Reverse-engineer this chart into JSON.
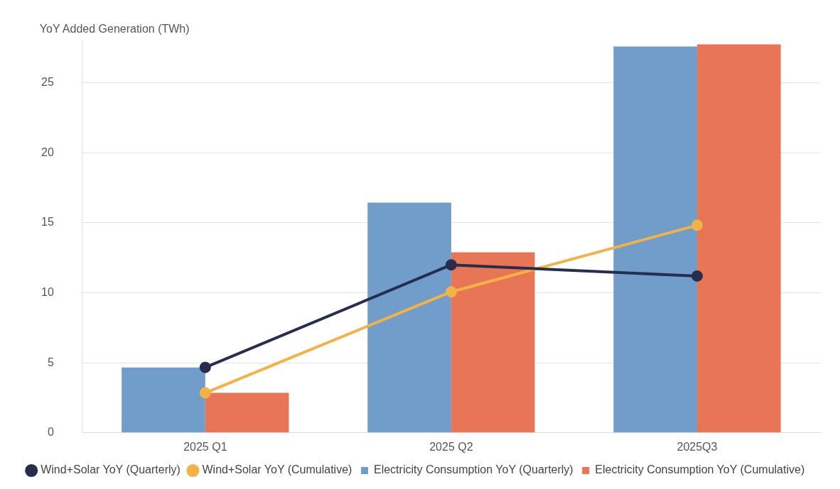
{
  "chart_data": {
    "type": "bar",
    "ylabel": "YoY Added Generation (TWh)",
    "categories": [
      "2025 Q1",
      "2025 Q2",
      "2025Q3"
    ],
    "series": [
      {
        "name": "Wind+Solar YoY (Quarterly)",
        "type": "line",
        "color": "#262d4d",
        "values": [
          4.67,
          12.0,
          11.2
        ]
      },
      {
        "name": "Electricity Consumption YoY (Quarterly)",
        "color": "#709dca",
        "values": [
          4.67,
          16.45,
          27.6
        ]
      },
      {
        "name": "Wind+Solar YoY (Cumulative)",
        "type": "line",
        "color": "#f2b245",
        "values": [
          2.85,
          10.07,
          14.83
        ]
      },
      {
        "name": "Electricity Consumption YoY (Cumulative)",
        "color": "#e87656",
        "values": [
          2.85,
          12.9,
          27.75
        ]
      }
    ],
    "ylim": [
      0,
      28
    ],
    "yticks": [
      0,
      5,
      10,
      15,
      20,
      25
    ],
    "grid": "y",
    "legend": "bottom",
    "marker": "circle",
    "line_style": "solid"
  }
}
